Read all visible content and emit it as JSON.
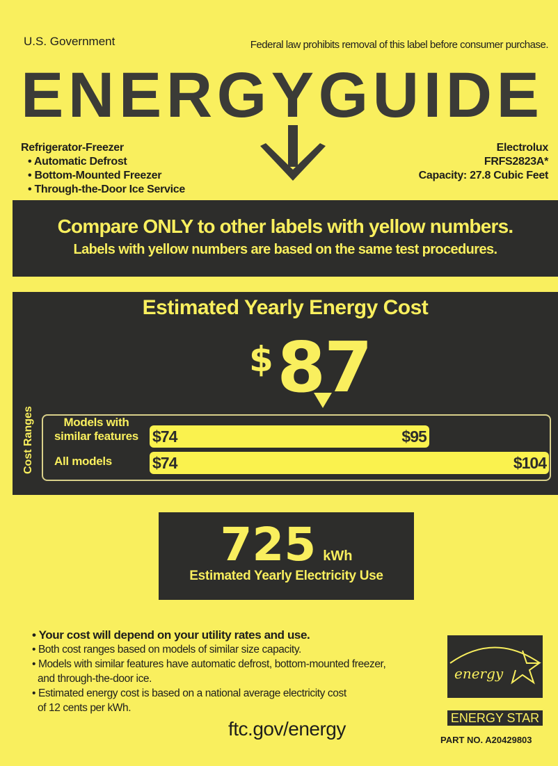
{
  "header": {
    "government": "U.S. Government",
    "legal_notice": "Federal law prohibits removal of this label before consumer purchase.",
    "logo_text": "ENERGYGUIDE"
  },
  "product": {
    "type": "Refrigerator-Freezer",
    "features": [
      "Automatic Defrost",
      "Bottom-Mounted Freezer",
      "Through-the-Door Ice Service"
    ],
    "brand": "Electrolux",
    "model": "FRFS2823A*",
    "capacity": "Capacity: 27.8 Cubic Feet"
  },
  "compare": {
    "line1": "Compare ONLY to other labels with yellow numbers.",
    "line2": "Labels with yellow numbers are based on the same test procedures."
  },
  "cost": {
    "title": "Estimated Yearly Energy Cost",
    "currency": "$",
    "value": "87",
    "ranges_label": "Cost Ranges",
    "similar": {
      "label1": "Models with",
      "label2": "similar features",
      "min": "$74",
      "max": "$95"
    },
    "all": {
      "label": "All models",
      "min": "$74",
      "max": "$104"
    },
    "scale": {
      "min": 74,
      "max": 104,
      "value": 87,
      "similar_max": 95
    }
  },
  "electricity": {
    "value": "725",
    "unit": "kWh",
    "label": "Estimated Yearly Electricity Use"
  },
  "notes": [
    "Your cost will depend on your utility rates and use.",
    "Both cost ranges based on models of similar size capacity.",
    "Models with similar features have automatic defrost, bottom-mounted freezer,",
    "and through-the-door ice.",
    "Estimated energy cost is based on a national average electricity cost",
    "of 12 cents per kWh."
  ],
  "website": "ftc.gov/energy",
  "energy_star": {
    "script": "energy",
    "label": "ENERGY STAR"
  },
  "part_no": "PART NO.  A20429803",
  "colors": {
    "yellow": "#f9ef5e",
    "dark": "#2d2d2b"
  }
}
